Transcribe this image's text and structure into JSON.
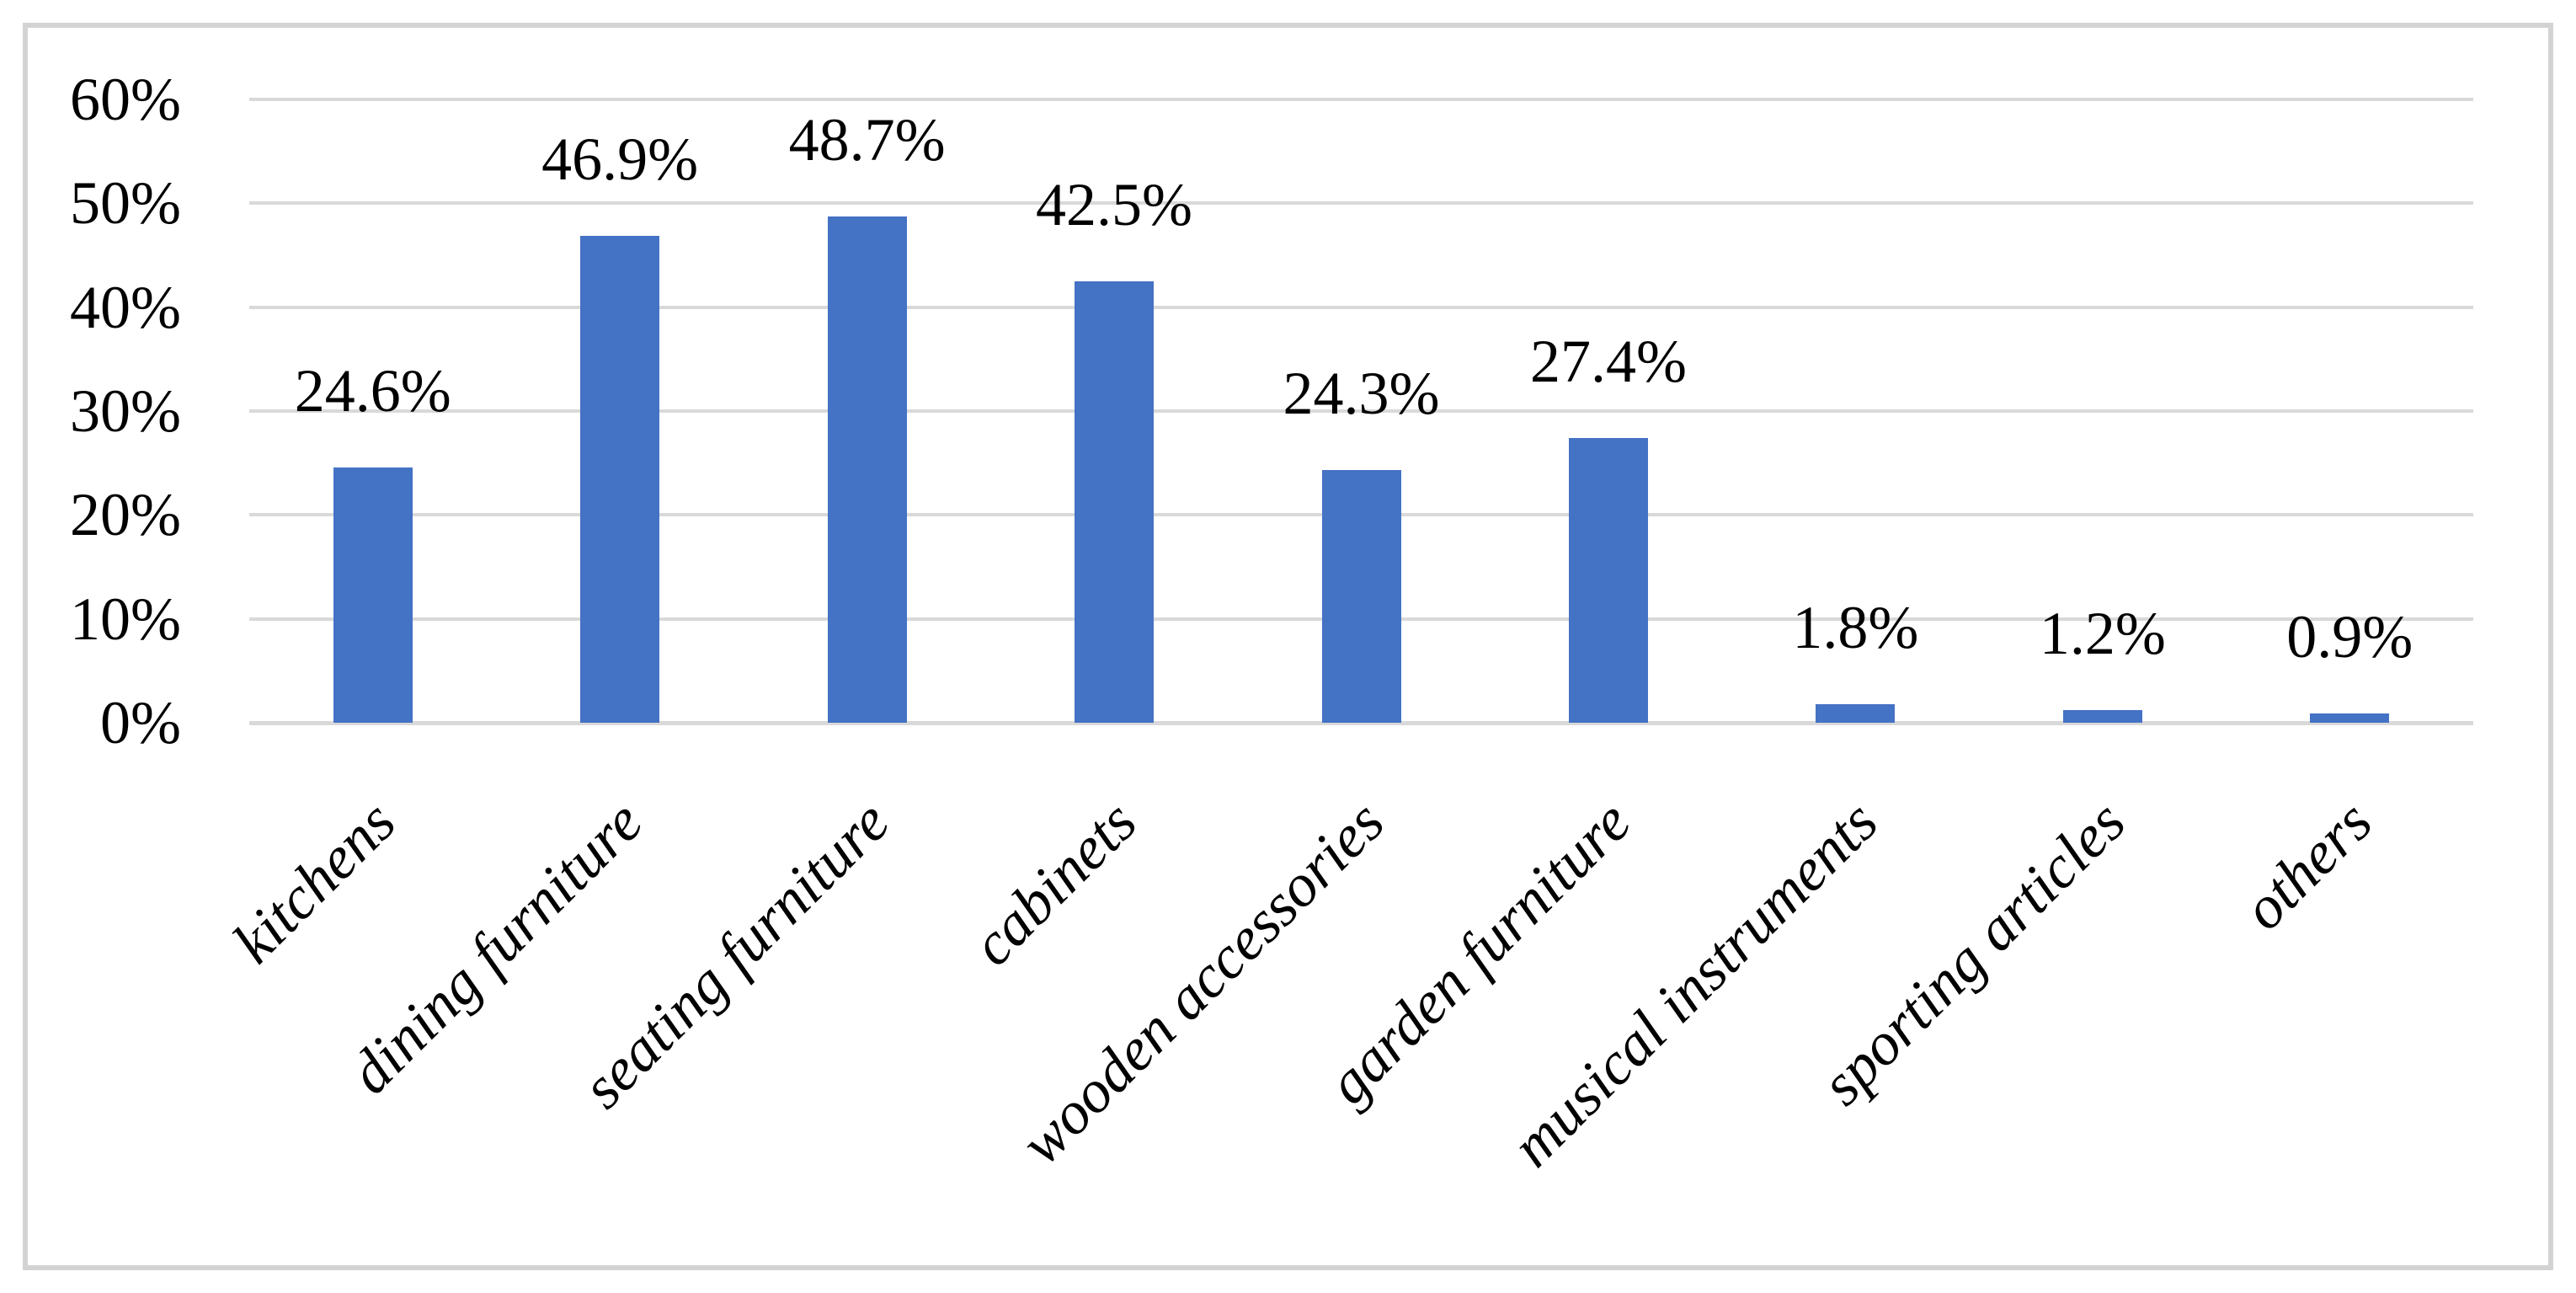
{
  "chart_data": {
    "type": "bar",
    "title": "",
    "xlabel": "",
    "ylabel": "",
    "categories": [
      "kitchens",
      "dining furniture",
      "seating furniture",
      "cabinets",
      "wooden accessories",
      "garden furniture",
      "musical instruments",
      "sporting articles",
      "others"
    ],
    "values": [
      24.6,
      46.9,
      48.7,
      42.5,
      24.3,
      27.4,
      1.8,
      1.2,
      0.9
    ],
    "data_labels": [
      "24.6%",
      "46.9%",
      "48.7%",
      "42.5%",
      "24.3%",
      "27.4%",
      "1.8%",
      "1.2%",
      "0.9%"
    ],
    "yticks": [
      {
        "value": 0,
        "label": "0%"
      },
      {
        "value": 10,
        "label": "10%"
      },
      {
        "value": 20,
        "label": "20%"
      },
      {
        "value": 30,
        "label": "30%"
      },
      {
        "value": 40,
        "label": "40%"
      },
      {
        "value": 50,
        "label": "50%"
      },
      {
        "value": 60,
        "label": "60%"
      }
    ],
    "ylim": [
      0,
      60
    ],
    "grid": true,
    "legend_position": "none",
    "bar_color": "#4472C4",
    "gridline_color": "#D9D9D9",
    "axis_line_color": "#D9D9D9",
    "frame_border_color": "#D3D3D3",
    "background_color": "#FFFFFF"
  }
}
